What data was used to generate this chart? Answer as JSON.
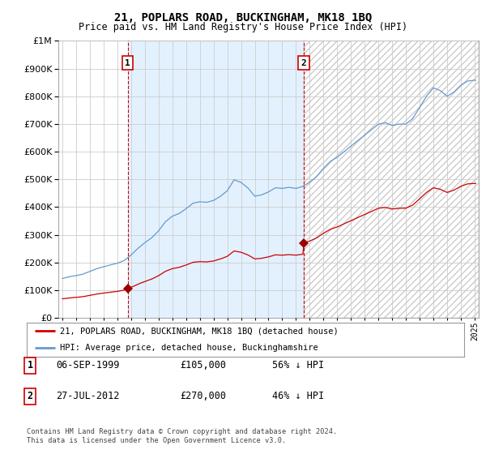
{
  "title": "21, POPLARS ROAD, BUCKINGHAM, MK18 1BQ",
  "subtitle": "Price paid vs. HM Land Registry's House Price Index (HPI)",
  "legend_line1": "21, POPLARS ROAD, BUCKINGHAM, MK18 1BQ (detached house)",
  "legend_line2": "HPI: Average price, detached house, Buckinghamshire",
  "table_rows": [
    {
      "num": "1",
      "date": "06-SEP-1999",
      "price": "£105,000",
      "note": "56% ↓ HPI"
    },
    {
      "num": "2",
      "date": "27-JUL-2012",
      "price": "£270,000",
      "note": "46% ↓ HPI"
    }
  ],
  "footnote": "Contains HM Land Registry data © Crown copyright and database right 2024.\nThis data is licensed under the Open Government Licence v3.0.",
  "hpi_color": "#6699cc",
  "price_color": "#cc0000",
  "marker_color": "#990000",
  "sale1_year": 1999.75,
  "sale1_price": 105000,
  "sale2_year": 2012.57,
  "sale2_price": 270000,
  "ylim": [
    0,
    1000000
  ],
  "yticks": [
    0,
    100000,
    200000,
    300000,
    400000,
    500000,
    600000,
    700000,
    800000,
    900000,
    1000000
  ],
  "xlim_start": 1994.7,
  "xlim_end": 2025.3,
  "background_color": "#ffffff",
  "grid_color": "#cccccc",
  "shade_color": "#ddeeff",
  "hatch_color": "#cccccc"
}
